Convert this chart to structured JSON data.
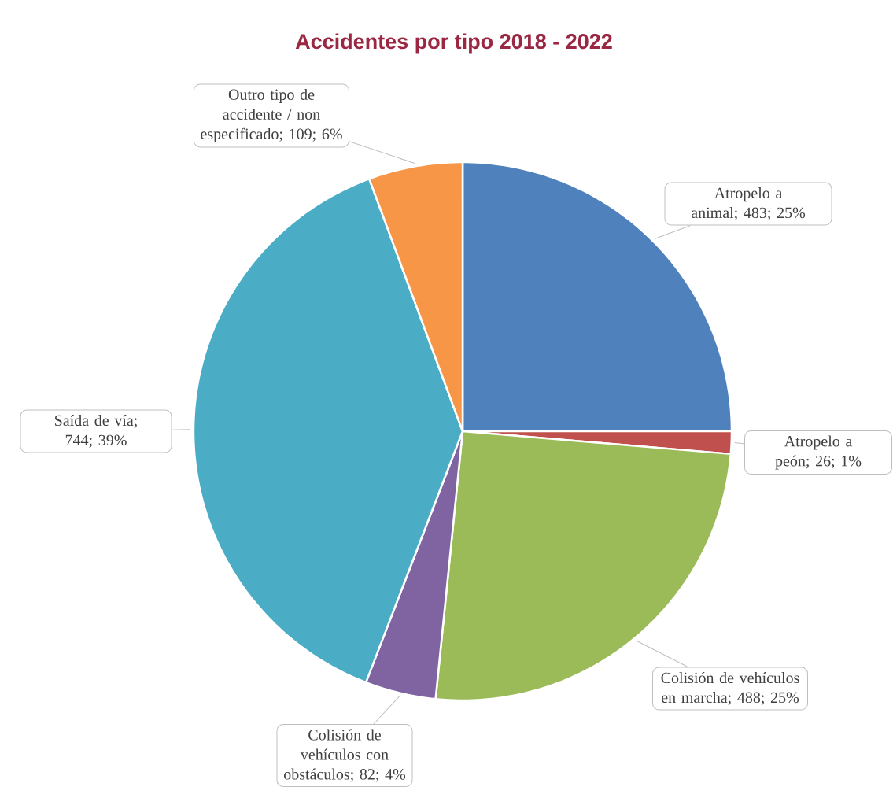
{
  "chart_data": {
    "type": "pie",
    "title": "Accidentes por tipo 2018 - 2022",
    "categories": [
      "Atropelo a animal",
      "Atropelo a peón",
      "Colisión de vehículos en marcha",
      "Colisión de vehículos con obstáculos",
      "Saída de vía",
      "Outro tipo de accidente / non especificado"
    ],
    "values": [
      483,
      26,
      488,
      82,
      744,
      109
    ],
    "colors": [
      "#4f81bd",
      "#c0504d",
      "#9bbb59",
      "#8064a2",
      "#4bacc6",
      "#f79646"
    ],
    "value_labels": [
      "; 483; 25%",
      "; 26; 1%",
      "; 488; 25%",
      "; 82; 4%",
      "; 744; 39%",
      "; 109; 6%"
    ]
  }
}
